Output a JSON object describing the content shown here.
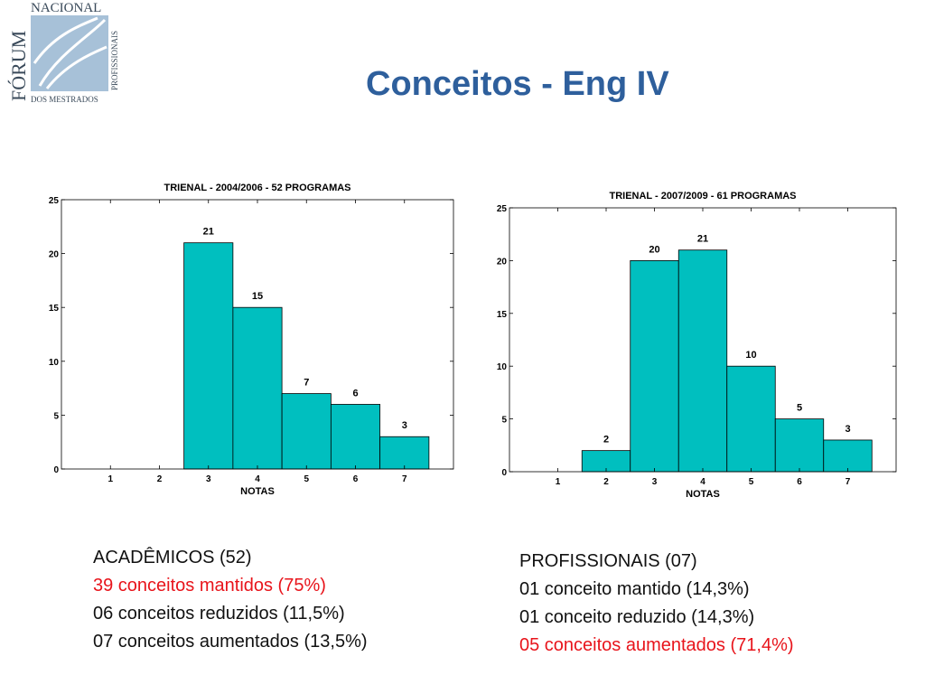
{
  "logo": {
    "top_text": "NACIONAL",
    "side_text": "FÓRUM",
    "vertical_text": "PROFISSIONAIS",
    "bottom_text": "DOS MESTRADOS",
    "color": "#a7c1d8"
  },
  "page_title": "Conceitos - Eng IV",
  "chart_data": [
    {
      "type": "bar",
      "title": "TRIENAL - 2004/2006 - 52 PROGRAMAS",
      "xlabel": "NOTAS",
      "ylabel": "",
      "categories": [
        "1",
        "2",
        "3",
        "4",
        "5",
        "6",
        "7"
      ],
      "values": [
        0,
        0,
        21,
        15,
        7,
        6,
        3
      ],
      "data_labels": [
        "",
        "",
        "21",
        "15",
        "7",
        "6",
        "3"
      ],
      "ylim": [
        0,
        25
      ],
      "yticks": [
        "0",
        "5",
        "10",
        "15",
        "20",
        "25"
      ],
      "bar_color": "#00bfbf",
      "grid": false
    },
    {
      "type": "bar",
      "title": "TRIENAL - 2007/2009 - 61 PROGRAMAS",
      "xlabel": "NOTAS",
      "ylabel": "",
      "categories": [
        "1",
        "2",
        "3",
        "4",
        "5",
        "6",
        "7"
      ],
      "values": [
        0,
        2,
        20,
        21,
        10,
        5,
        3
      ],
      "data_labels": [
        "",
        "2",
        "20",
        "21",
        "10",
        "5",
        "3"
      ],
      "ylim": [
        0,
        25
      ],
      "yticks": [
        "0",
        "5",
        "10",
        "15",
        "20",
        "25"
      ],
      "bar_color": "#00bfbf",
      "grid": false
    }
  ],
  "stats_left": {
    "heading": "ACADÊMICOS (52)",
    "line1": "39 conceitos mantidos (75%)",
    "line2": "06 conceitos reduzidos (11,5%)",
    "line3": "07 conceitos aumentados (13,5%)"
  },
  "stats_right": {
    "heading": "PROFISSIONAIS (07)",
    "line1": "01 conceito mantido (14,3%)",
    "line2": "01 conceito reduzido (14,3%)",
    "line3": "05 conceitos aumentados (71,4%)"
  }
}
